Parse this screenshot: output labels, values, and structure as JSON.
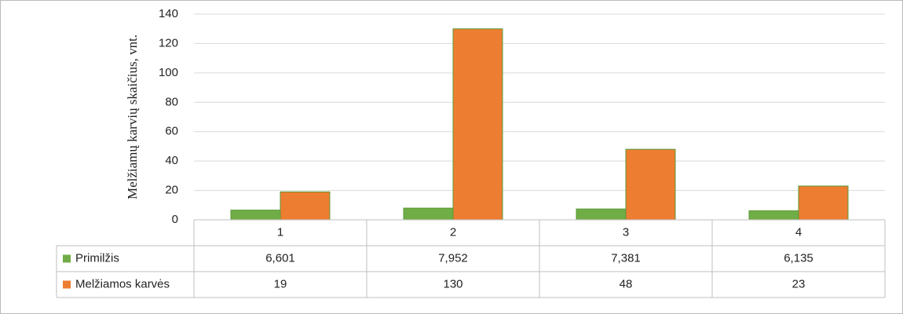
{
  "chart_data": {
    "type": "bar",
    "y_label": "Melžiamų karvių skaičius, vnt.",
    "categories": [
      "1",
      "2",
      "3",
      "4"
    ],
    "series": [
      {
        "name": "Primilžis",
        "color": "#70ad47",
        "values": [
          6.601,
          7.952,
          7.381,
          6.135
        ],
        "value_labels": [
          "6,601",
          "7,952",
          "7,381",
          "6,135"
        ]
      },
      {
        "name": "Melžiamos karvės",
        "color": "#ed7d31",
        "values": [
          19,
          130,
          48,
          23
        ]
      }
    ],
    "ylim": [
      0,
      140
    ],
    "yticks": [
      0,
      20,
      40,
      60,
      80,
      100,
      120,
      140
    ],
    "grid": true
  }
}
